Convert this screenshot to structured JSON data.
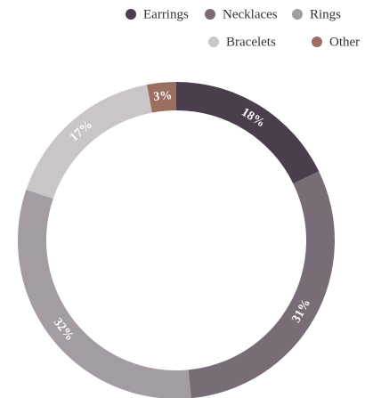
{
  "chart_data": {
    "type": "donut",
    "categories": [
      "Earrings",
      "Necklaces",
      "Rings",
      "Bracelets",
      "Other"
    ],
    "values": [
      18,
      31,
      32,
      17,
      3
    ],
    "value_labels": [
      "18%",
      "31%",
      "32%",
      "17%",
      "3%"
    ],
    "colors": [
      "#4a3d4c",
      "#786c76",
      "#a49ca3",
      "#c9c5c8",
      "#9a6e61"
    ],
    "legend": "top-right"
  }
}
